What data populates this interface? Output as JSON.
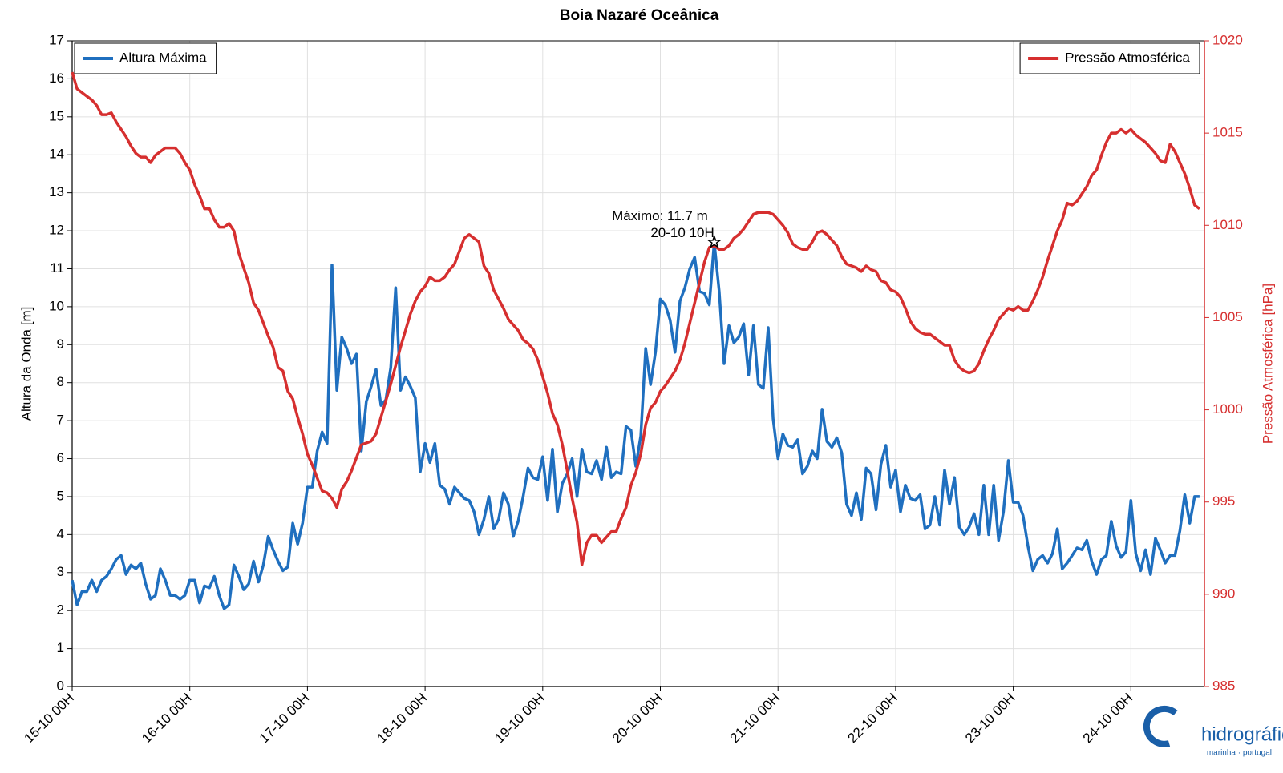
{
  "chart_data": {
    "type": "line",
    "title": "Boia Nazaré Oceânica",
    "ylabel": "Altura da Onda [m]",
    "y2label": "Pressão Atmosférica [hPa]",
    "x": [
      0,
      1,
      2,
      3,
      4,
      5,
      6,
      7,
      8,
      9,
      10,
      11,
      12,
      13,
      14,
      15,
      16,
      17,
      18,
      19,
      20,
      21,
      22,
      23,
      24,
      25,
      26,
      27,
      28,
      29,
      30,
      31,
      32,
      33,
      34,
      35,
      36,
      37,
      38,
      39,
      40,
      41,
      42,
      43,
      44,
      45,
      46,
      47,
      48,
      49,
      50,
      51,
      52,
      53,
      54,
      55,
      56,
      57,
      58,
      59,
      60,
      61,
      62,
      63,
      64,
      65,
      66,
      67,
      68,
      69,
      70,
      71,
      72,
      73,
      74,
      75,
      76,
      77,
      78,
      79,
      80,
      81,
      82,
      83,
      84,
      85,
      86,
      87,
      88,
      89,
      90,
      91,
      92,
      93,
      94,
      95,
      96,
      97,
      98,
      99,
      100,
      101,
      102,
      103,
      104,
      105,
      106,
      107,
      108,
      109,
      110,
      111,
      112,
      113,
      114,
      115,
      116,
      117,
      118,
      119,
      120,
      121,
      122,
      123,
      124,
      125,
      126,
      127,
      128,
      129,
      130,
      131,
      132,
      133,
      134,
      135,
      136,
      137,
      138,
      139,
      140,
      141,
      142,
      143,
      144,
      145,
      146,
      147,
      148,
      149,
      150,
      151,
      152,
      153,
      154,
      155,
      156,
      157,
      158,
      159,
      160,
      161,
      162,
      163,
      164,
      165,
      166,
      167,
      168,
      169,
      170,
      171,
      172,
      173,
      174,
      175,
      176,
      177,
      178,
      179,
      180,
      181,
      182,
      183,
      184,
      185,
      186,
      187,
      188,
      189,
      190,
      191,
      192,
      193,
      194,
      195,
      196,
      197,
      198,
      199,
      200,
      201,
      202,
      203,
      204,
      205,
      206,
      207,
      208,
      209,
      210,
      211,
      212,
      213,
      214,
      215,
      216,
      217,
      218,
      219,
      220,
      221,
      222,
      223,
      224,
      225,
      226,
      227,
      228,
      229,
      230
    ],
    "xlim": [
      0,
      231
    ],
    "xticks": [
      {
        "value": 0,
        "label": "15-10 00H"
      },
      {
        "value": 24,
        "label": "16-10 00H"
      },
      {
        "value": 48,
        "label": "17-10 00H"
      },
      {
        "value": 72,
        "label": "18-10 00H"
      },
      {
        "value": 96,
        "label": "19-10 00H"
      },
      {
        "value": 120,
        "label": "20-10 00H"
      },
      {
        "value": 144,
        "label": "21-10 00H"
      },
      {
        "value": 168,
        "label": "22-10 00H"
      },
      {
        "value": 192,
        "label": "23-10 00H"
      },
      {
        "value": 216,
        "label": "24-10 00H"
      }
    ],
    "ylim": [
      0,
      17
    ],
    "yticks": [
      0,
      1,
      2,
      3,
      4,
      5,
      6,
      7,
      8,
      9,
      10,
      11,
      12,
      13,
      14,
      15,
      16,
      17
    ],
    "y2lim": [
      985,
      1020
    ],
    "y2ticks": [
      985,
      990,
      995,
      1000,
      1005,
      1010,
      1015,
      1020
    ],
    "grid": true,
    "series": [
      {
        "name": "Altura Máxima",
        "color": "#1f6fbf",
        "legend": "upper left",
        "values": [
          2.8,
          2.15,
          2.5,
          2.5,
          2.8,
          2.5,
          2.8,
          2.9,
          3.1,
          3.35,
          3.45,
          2.95,
          3.2,
          3.1,
          3.25,
          2.7,
          2.3,
          2.4,
          3.1,
          2.8,
          2.4,
          2.4,
          2.3,
          2.4,
          2.8,
          2.8,
          2.2,
          2.65,
          2.6,
          2.9,
          2.4,
          2.05,
          2.15,
          3.2,
          2.9,
          2.55,
          2.7,
          3.3,
          2.75,
          3.2,
          3.95,
          3.6,
          3.3,
          3.05,
          3.15,
          4.3,
          3.75,
          4.3,
          5.25,
          5.25,
          6.2,
          6.7,
          6.4,
          11.1,
          7.8,
          9.2,
          8.9,
          8.5,
          8.75,
          6.2,
          7.5,
          7.9,
          8.35,
          7.4,
          7.55,
          8.4,
          10.5,
          7.8,
          8.15,
          7.9,
          7.6,
          5.65,
          6.4,
          5.9,
          6.4,
          5.3,
          5.2,
          4.8,
          5.25,
          5.1,
          4.95,
          4.9,
          4.6,
          4.0,
          4.4,
          5.0,
          4.15,
          4.4,
          5.1,
          4.8,
          3.95,
          4.35,
          5.0,
          5.75,
          5.5,
          5.45,
          6.05,
          4.9,
          6.25,
          4.6,
          5.35,
          5.6,
          6.0,
          5.0,
          6.25,
          5.65,
          5.6,
          5.95,
          5.45,
          6.3,
          5.5,
          5.65,
          5.6,
          6.85,
          6.75,
          5.8,
          6.6,
          8.9,
          7.95,
          8.8,
          10.2,
          10.05,
          9.65,
          8.8,
          10.15,
          10.5,
          11.0,
          11.3,
          10.4,
          10.35,
          10.05,
          11.7,
          10.4,
          8.5,
          9.5,
          9.05,
          9.2,
          9.55,
          8.2,
          9.5,
          7.95,
          7.85,
          9.45,
          7.05,
          6.0,
          6.65,
          6.35,
          6.3,
          6.5,
          5.6,
          5.8,
          6.2,
          6.0,
          7.3,
          6.45,
          6.3,
          6.55,
          6.15,
          4.8,
          4.5,
          5.1,
          4.4,
          5.75,
          5.6,
          4.65,
          5.85,
          6.35,
          5.25,
          5.7,
          4.6,
          5.3,
          4.95,
          4.9,
          5.05,
          4.15,
          4.25,
          5.0,
          4.25,
          5.7,
          4.8,
          5.5,
          4.2,
          4.0,
          4.2,
          4.55,
          4.0,
          5.3,
          4.0,
          5.3,
          3.85,
          4.6,
          5.95,
          4.85,
          4.85,
          4.5,
          3.7,
          3.05,
          3.35,
          3.45,
          3.25,
          3.5,
          4.15,
          3.1,
          3.25,
          3.45,
          3.65,
          3.6,
          3.85,
          3.3,
          2.95,
          3.35,
          3.45,
          4.35,
          3.7,
          3.4,
          3.55,
          4.9,
          3.5,
          3.05,
          3.6,
          2.95,
          3.9,
          3.6,
          3.25,
          3.45,
          3.45,
          4.1,
          5.05,
          4.3,
          5.0,
          5.0
        ]
      },
      {
        "name": "Pressão Atmosférica",
        "color": "#d62f2f",
        "legend": "upper right",
        "axis": "y2",
        "values": [
          1018.3,
          1017.4,
          1017.2,
          1017.0,
          1016.8,
          1016.5,
          1016.0,
          1016.0,
          1016.1,
          1015.6,
          1015.2,
          1014.8,
          1014.3,
          1013.9,
          1013.7,
          1013.7,
          1013.4,
          1013.8,
          1014.0,
          1014.2,
          1014.2,
          1014.2,
          1013.9,
          1013.4,
          1013.0,
          1012.2,
          1011.6,
          1010.9,
          1010.9,
          1010.3,
          1009.9,
          1009.9,
          1010.1,
          1009.7,
          1008.5,
          1007.7,
          1006.9,
          1005.8,
          1005.4,
          1004.7,
          1004.0,
          1003.4,
          1002.3,
          1002.1,
          1001.0,
          1000.6,
          999.6,
          998.7,
          997.6,
          997.0,
          996.3,
          995.6,
          995.5,
          995.2,
          994.7,
          995.7,
          996.1,
          996.7,
          997.4,
          998.1,
          998.2,
          998.3,
          998.7,
          999.6,
          1000.5,
          1001.4,
          1002.4,
          1003.4,
          1004.3,
          1005.2,
          1005.9,
          1006.4,
          1006.7,
          1007.2,
          1007.0,
          1007.0,
          1007.2,
          1007.6,
          1007.9,
          1008.6,
          1009.3,
          1009.5,
          1009.3,
          1009.1,
          1007.8,
          1007.4,
          1006.5,
          1006.0,
          1005.5,
          1004.9,
          1004.6,
          1004.3,
          1003.8,
          1003.6,
          1003.3,
          1002.7,
          1001.8,
          1000.9,
          999.8,
          999.2,
          998.1,
          996.7,
          995.2,
          993.9,
          991.6,
          992.8,
          993.2,
          993.2,
          992.8,
          993.1,
          993.4,
          993.4,
          994.1,
          994.7,
          995.9,
          996.6,
          997.6,
          999.2,
          1000.1,
          1000.4,
          1001.0,
          1001.3,
          1001.7,
          1002.1,
          1002.7,
          1003.6,
          1004.7,
          1005.8,
          1006.9,
          1008.0,
          1008.8,
          1008.9,
          1008.7,
          1008.7,
          1008.9,
          1009.3,
          1009.5,
          1009.8,
          1010.2,
          1010.6,
          1010.7,
          1010.7,
          1010.7,
          1010.6,
          1010.3,
          1010.0,
          1009.6,
          1009.0,
          1008.8,
          1008.7,
          1008.7,
          1009.1,
          1009.6,
          1009.7,
          1009.5,
          1009.2,
          1008.9,
          1008.3,
          1007.9,
          1007.8,
          1007.7,
          1007.5,
          1007.8,
          1007.6,
          1007.5,
          1007.0,
          1006.9,
          1006.5,
          1006.4,
          1006.1,
          1005.5,
          1004.8,
          1004.4,
          1004.2,
          1004.1,
          1004.1,
          1003.9,
          1003.7,
          1003.5,
          1003.5,
          1002.7,
          1002.3,
          1002.1,
          1002.0,
          1002.1,
          1002.5,
          1003.2,
          1003.8,
          1004.3,
          1004.9,
          1005.2,
          1005.5,
          1005.4,
          1005.6,
          1005.4,
          1005.4,
          1005.9,
          1006.5,
          1007.2,
          1008.1,
          1008.9,
          1009.7,
          1010.3,
          1011.2,
          1011.1,
          1011.3,
          1011.7,
          1012.1,
          1012.7,
          1013.0,
          1013.8,
          1014.5,
          1015.0,
          1015.0,
          1015.2,
          1015.0,
          1015.2,
          1014.9,
          1014.7,
          1014.5,
          1014.2,
          1013.9,
          1013.5,
          1013.4,
          1014.4,
          1014.0,
          1013.4,
          1012.8,
          1012.0,
          1011.1,
          1010.9
        ]
      }
    ],
    "annotation": {
      "lines": [
        "Máximo: 11.7 m",
        "20-10 10H"
      ],
      "x": 131,
      "y": 11.7
    },
    "logo": {
      "name": "hidrográfico",
      "subtitle": "marinha · portugal"
    }
  }
}
